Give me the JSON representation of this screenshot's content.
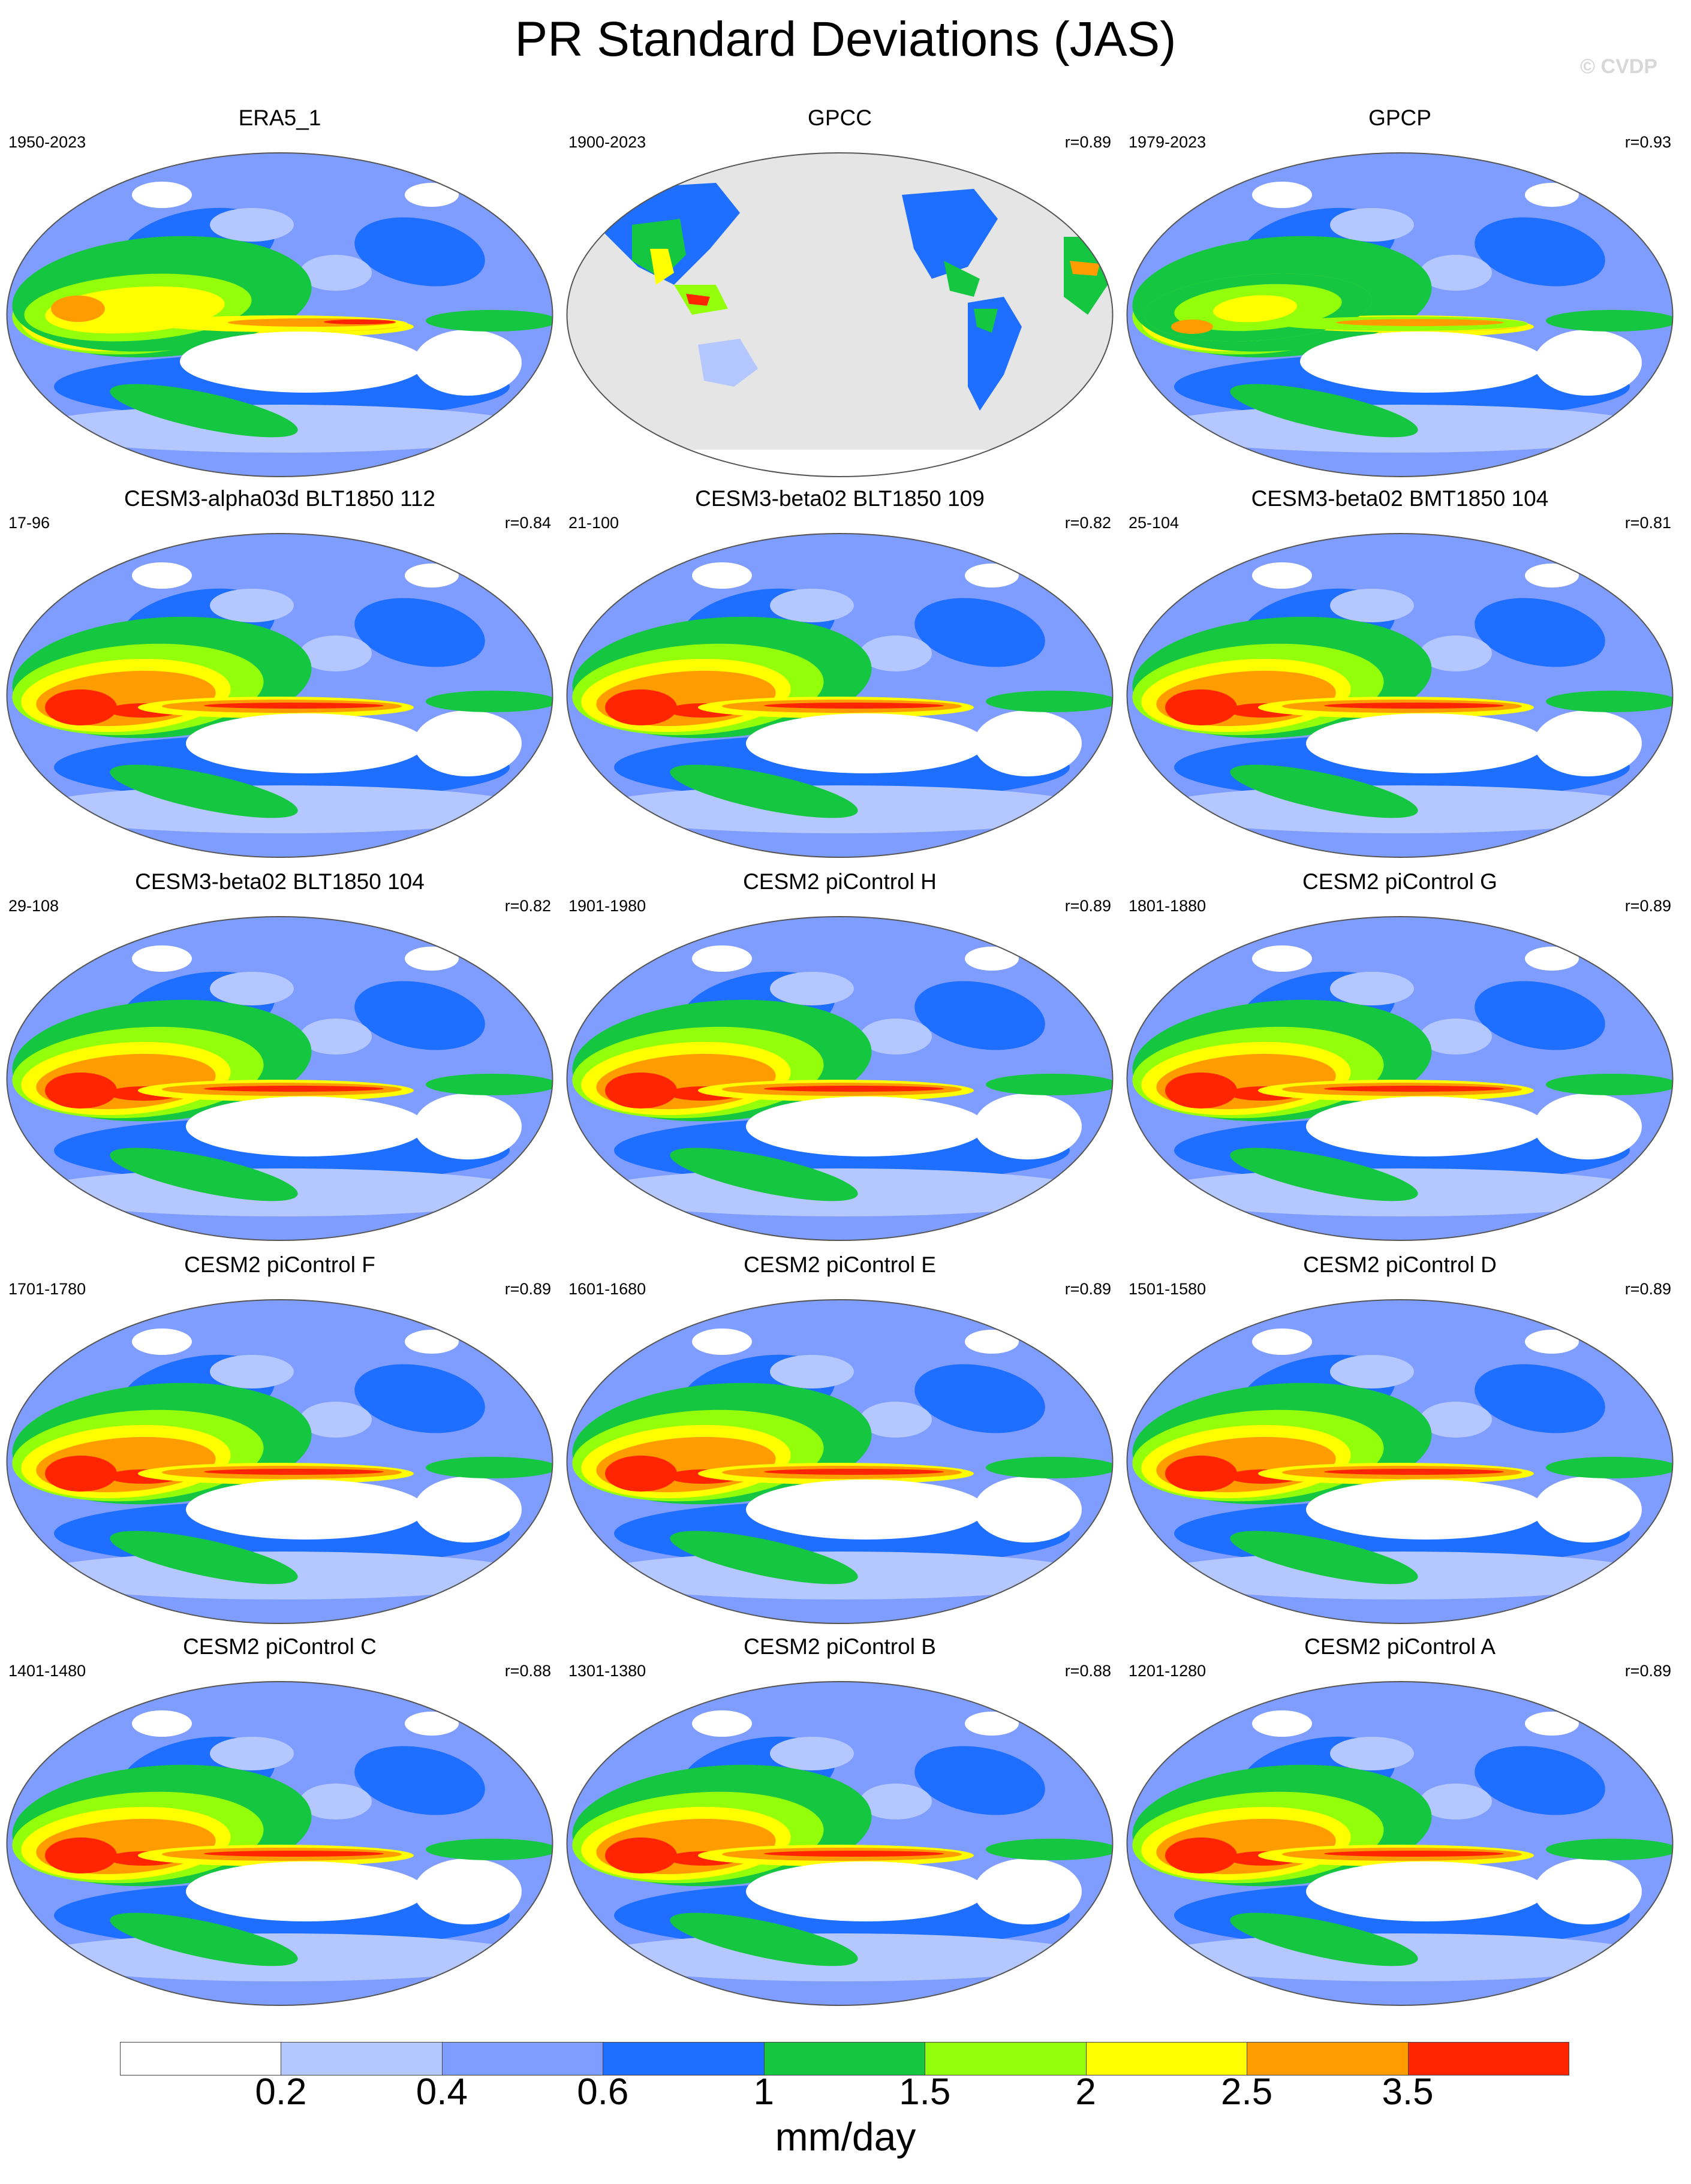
{
  "title": "PR Standard Deviations (JAS)",
  "watermark": "© CVDP",
  "chart_data": {
    "type": "heatmap",
    "title": "PR Standard Deviations (JAS)",
    "units": "mm/day",
    "colorbar": {
      "levels": [
        "0.2",
        "0.4",
        "0.6",
        "1",
        "1.5",
        "2",
        "2.5",
        "3.5"
      ],
      "colors": [
        "#ffffff",
        "#b4c8ff",
        "#7f9cff",
        "#1e6eff",
        "#15c640",
        "#94ff0a",
        "#ffff00",
        "#ff9d00",
        "#ff2500"
      ]
    },
    "panels": [
      {
        "title": "ERA5_1",
        "years": "1950-2023",
        "r": ""
      },
      {
        "title": "GPCC",
        "years": "1900-2023",
        "r": "r=0.89"
      },
      {
        "title": "GPCP",
        "years": "1979-2023",
        "r": "r=0.93"
      },
      {
        "title": "CESM3-alpha03d BLT1850 112",
        "years": "17-96",
        "r": "r=0.84"
      },
      {
        "title": "CESM3-beta02 BLT1850 109",
        "years": "21-100",
        "r": "r=0.82"
      },
      {
        "title": "CESM3-beta02 BMT1850 104",
        "years": "25-104",
        "r": "r=0.81"
      },
      {
        "title": "CESM3-beta02 BLT1850 104",
        "years": "29-108",
        "r": "r=0.82"
      },
      {
        "title": "CESM2 piControl H",
        "years": "1901-1980",
        "r": "r=0.89"
      },
      {
        "title": "CESM2 piControl G",
        "years": "1801-1880",
        "r": "r=0.89"
      },
      {
        "title": "CESM2 piControl F",
        "years": "1701-1780",
        "r": "r=0.89"
      },
      {
        "title": "CESM2 piControl E",
        "years": "1601-1680",
        "r": "r=0.89"
      },
      {
        "title": "CESM2 piControl D",
        "years": "1501-1580",
        "r": "r=0.89"
      },
      {
        "title": "CESM2 piControl C",
        "years": "1401-1480",
        "r": "r=0.88"
      },
      {
        "title": "CESM2 piControl B",
        "years": "1301-1380",
        "r": "r=0.88"
      },
      {
        "title": "CESM2 piControl A",
        "years": "1201-1280",
        "r": "r=0.89"
      }
    ]
  }
}
